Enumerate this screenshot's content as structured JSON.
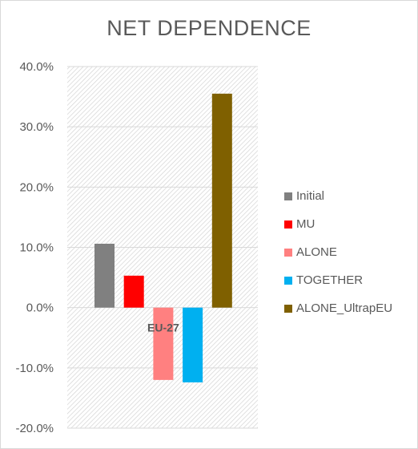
{
  "chart_data": {
    "type": "bar",
    "title": "NET DEPENDENCE",
    "categories": [
      "EU-27"
    ],
    "series": [
      {
        "name": "Initial",
        "values": [
          10.6
        ],
        "color": "#808080"
      },
      {
        "name": "MU",
        "values": [
          5.3
        ],
        "color": "#ff0000"
      },
      {
        "name": "ALONE",
        "values": [
          -12.0
        ],
        "color": "#ff8080"
      },
      {
        "name": "TOGETHER",
        "values": [
          -12.4
        ],
        "color": "#00b0f0"
      },
      {
        "name": "ALONE_UltrapEU",
        "values": [
          35.5
        ],
        "color": "#7f6000"
      }
    ],
    "y_ticks": [
      "-20.0%",
      "-10.0%",
      "0.0%",
      "10.0%",
      "20.0%",
      "30.0%",
      "40.0%"
    ],
    "ylim": [
      -20,
      40
    ],
    "xlabel": "",
    "ylabel": "",
    "grid": true,
    "legend_position": "right"
  }
}
